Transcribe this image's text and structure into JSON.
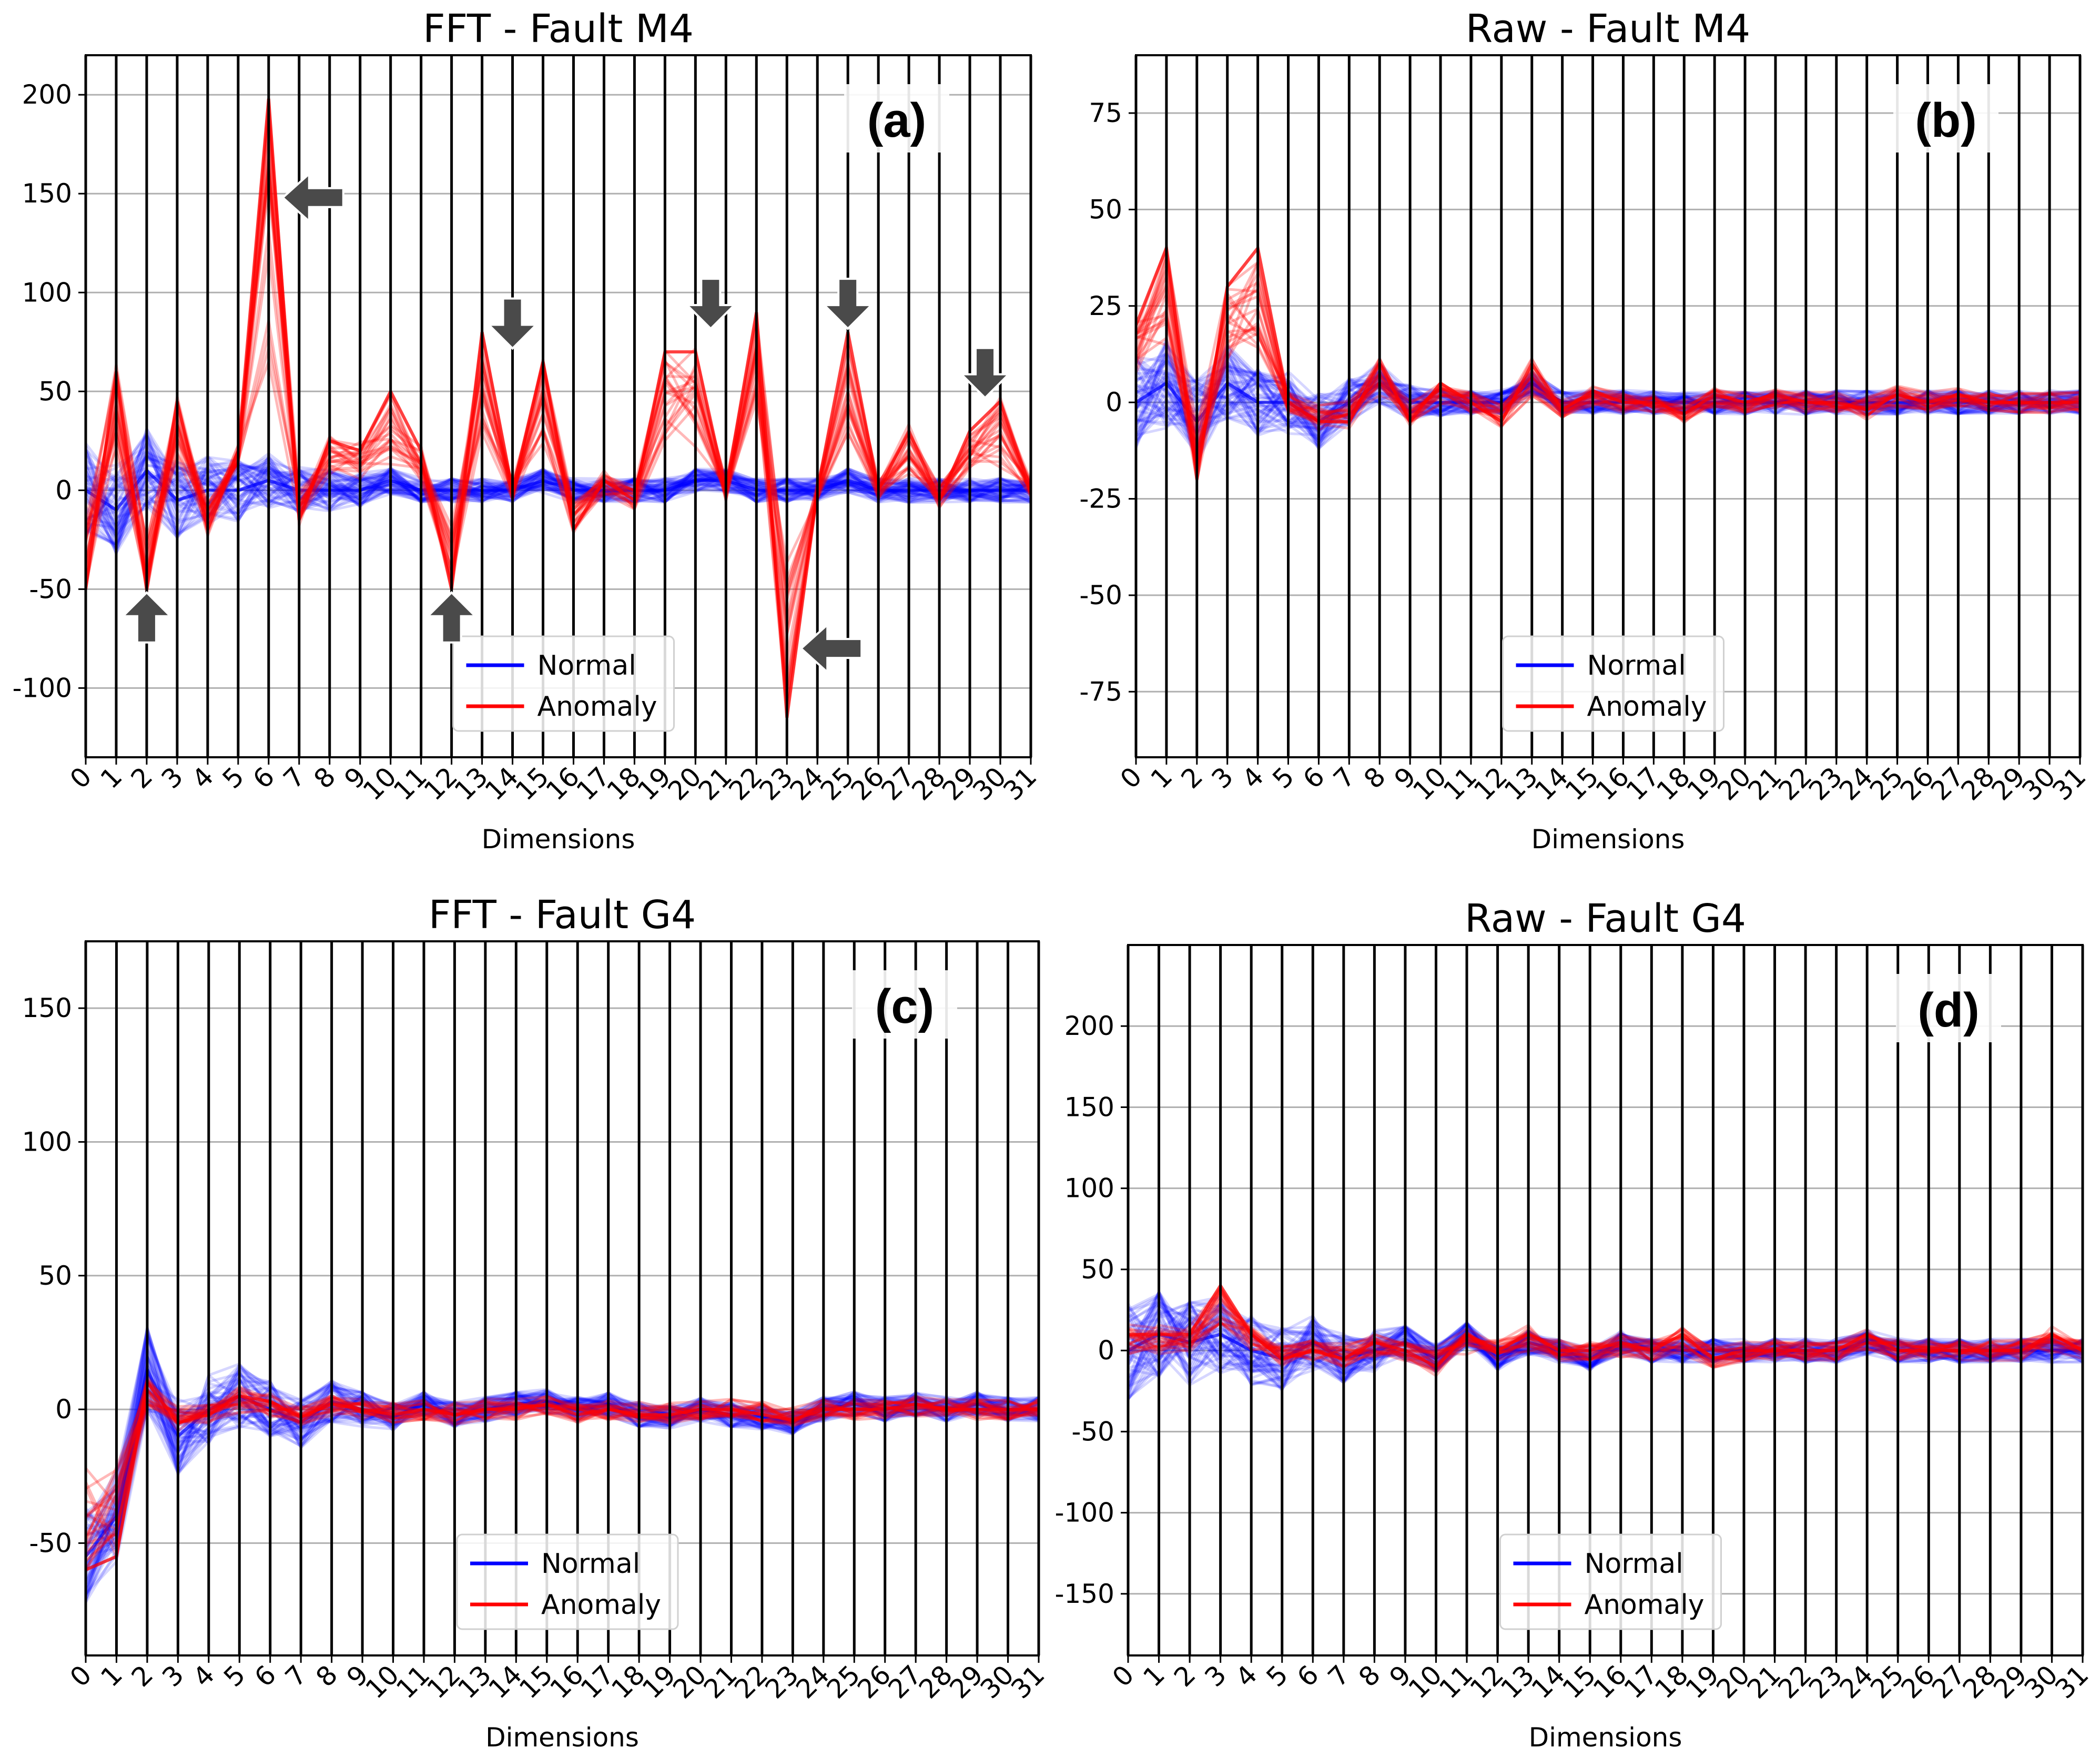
{
  "chart_data": [
    {
      "type": "line",
      "title": "FFT - Fault M4",
      "panel_label": "(a)",
      "xlabel": "Dimensions",
      "ylabel": "",
      "x": [
        0,
        1,
        2,
        3,
        4,
        5,
        6,
        7,
        8,
        9,
        10,
        11,
        12,
        13,
        14,
        15,
        16,
        17,
        18,
        19,
        20,
        21,
        22,
        23,
        24,
        25,
        26,
        27,
        28,
        29,
        30,
        31
      ],
      "ylim": [
        -135,
        220
      ],
      "yticks": [
        -100,
        -50,
        0,
        50,
        100,
        150,
        200
      ],
      "grid": true,
      "legend_position": "lower-center",
      "series": [
        {
          "name": "Normal",
          "color": "#0000ff",
          "values": [
            0,
            -10,
            10,
            -5,
            0,
            0,
            5,
            0,
            0,
            0,
            5,
            0,
            0,
            0,
            0,
            5,
            0,
            0,
            0,
            0,
            5,
            5,
            0,
            0,
            0,
            5,
            0,
            0,
            0,
            0,
            0,
            0
          ]
        },
        {
          "name": "Anomaly",
          "color": "#ff0000",
          "values": [
            -50,
            60,
            -50,
            45,
            -20,
            20,
            198,
            -15,
            25,
            20,
            50,
            20,
            -50,
            80,
            0,
            65,
            -20,
            5,
            -5,
            70,
            70,
            0,
            90,
            -115,
            0,
            80,
            0,
            30,
            -5,
            30,
            45,
            0
          ]
        }
      ],
      "annotations": [
        {
          "shape": "arrow-left",
          "x": 7.5,
          "y": 148
        },
        {
          "shape": "arrow-down",
          "x": 14,
          "y": 85
        },
        {
          "shape": "arrow-down",
          "x": 20.5,
          "y": 95
        },
        {
          "shape": "arrow-down",
          "x": 25,
          "y": 95
        },
        {
          "shape": "arrow-down",
          "x": 29.5,
          "y": 60
        },
        {
          "shape": "arrow-up",
          "x": 2,
          "y": -65
        },
        {
          "shape": "arrow-up",
          "x": 12,
          "y": -65
        },
        {
          "shape": "arrow-left",
          "x": 24.5,
          "y": -80
        }
      ]
    },
    {
      "type": "line",
      "title": "Raw - Fault M4",
      "panel_label": "(b)",
      "xlabel": "Dimensions",
      "ylabel": "",
      "x": [
        0,
        1,
        2,
        3,
        4,
        5,
        6,
        7,
        8,
        9,
        10,
        11,
        12,
        13,
        14,
        15,
        16,
        17,
        18,
        19,
        20,
        21,
        22,
        23,
        24,
        25,
        26,
        27,
        28,
        29,
        30,
        31
      ],
      "ylim": [
        -92,
        90
      ],
      "yticks": [
        -75,
        -50,
        -25,
        0,
        25,
        50,
        75
      ],
      "grid": true,
      "legend_position": "lower-center",
      "series": [
        {
          "name": "Normal",
          "color": "#0000ff",
          "values": [
            0,
            5,
            -5,
            5,
            0,
            0,
            -5,
            0,
            5,
            0,
            0,
            0,
            0,
            5,
            0,
            0,
            0,
            0,
            0,
            0,
            0,
            0,
            0,
            0,
            0,
            0,
            0,
            0,
            0,
            0,
            0,
            0
          ]
        },
        {
          "name": "Anomaly",
          "color": "#ff0000",
          "values": [
            20,
            40,
            -20,
            30,
            40,
            0,
            -5,
            -5,
            10,
            -5,
            5,
            0,
            -5,
            10,
            -2,
            3,
            0,
            0,
            -3,
            2,
            0,
            2,
            0,
            0,
            -2,
            2,
            0,
            2,
            0,
            0,
            0,
            0
          ]
        }
      ]
    },
    {
      "type": "line",
      "title": "FFT - Fault G4",
      "panel_label": "(c)",
      "xlabel": "Dimensions",
      "ylabel": "",
      "x": [
        0,
        1,
        2,
        3,
        4,
        5,
        6,
        7,
        8,
        9,
        10,
        11,
        12,
        13,
        14,
        15,
        16,
        17,
        18,
        19,
        20,
        21,
        22,
        23,
        24,
        25,
        26,
        27,
        28,
        29,
        30,
        31
      ],
      "ylim": [
        -92,
        175
      ],
      "yticks": [
        -50,
        0,
        50,
        100,
        150
      ],
      "grid": true,
      "legend_position": "lower-center",
      "series": [
        {
          "name": "Normal",
          "color": "#0000ff",
          "values": [
            -55,
            -40,
            15,
            -10,
            0,
            5,
            0,
            -5,
            3,
            0,
            -3,
            2,
            -2,
            0,
            2,
            3,
            0,
            2,
            -2,
            -3,
            0,
            -2,
            -3,
            -5,
            0,
            2,
            0,
            2,
            0,
            2,
            0,
            0
          ]
        },
        {
          "name": "Anomaly",
          "color": "#ff0000",
          "values": [
            -60,
            -55,
            10,
            -5,
            -2,
            5,
            3,
            -3,
            2,
            0,
            -2,
            0,
            -2,
            0,
            0,
            2,
            -2,
            0,
            -2,
            -2,
            0,
            0,
            -2,
            -4,
            0,
            0,
            0,
            2,
            0,
            0,
            0,
            0
          ]
        }
      ]
    },
    {
      "type": "line",
      "title": "Raw - Fault G4",
      "panel_label": "(d)",
      "xlabel": "Dimensions",
      "ylabel": "",
      "x": [
        0,
        1,
        2,
        3,
        4,
        5,
        6,
        7,
        8,
        9,
        10,
        11,
        12,
        13,
        14,
        15,
        16,
        17,
        18,
        19,
        20,
        21,
        22,
        23,
        24,
        25,
        26,
        27,
        28,
        29,
        30,
        31
      ],
      "ylim": [
        -188,
        250
      ],
      "yticks": [
        -150,
        -100,
        -50,
        0,
        50,
        100,
        150,
        200
      ],
      "grid": true,
      "legend_position": "lower-center",
      "series": [
        {
          "name": "Normal",
          "color": "#0000ff",
          "values": [
            0,
            10,
            5,
            10,
            0,
            -5,
            5,
            -5,
            0,
            5,
            -5,
            10,
            -5,
            5,
            0,
            -5,
            5,
            0,
            0,
            0,
            0,
            0,
            0,
            0,
            5,
            0,
            0,
            0,
            0,
            0,
            0,
            0
          ]
        },
        {
          "name": "Anomaly",
          "color": "#ff0000",
          "values": [
            10,
            10,
            10,
            40,
            10,
            -5,
            0,
            -5,
            5,
            0,
            -10,
            10,
            0,
            10,
            0,
            0,
            5,
            0,
            10,
            -5,
            0,
            0,
            0,
            0,
            10,
            0,
            0,
            0,
            0,
            0,
            10,
            0
          ]
        }
      ]
    }
  ]
}
